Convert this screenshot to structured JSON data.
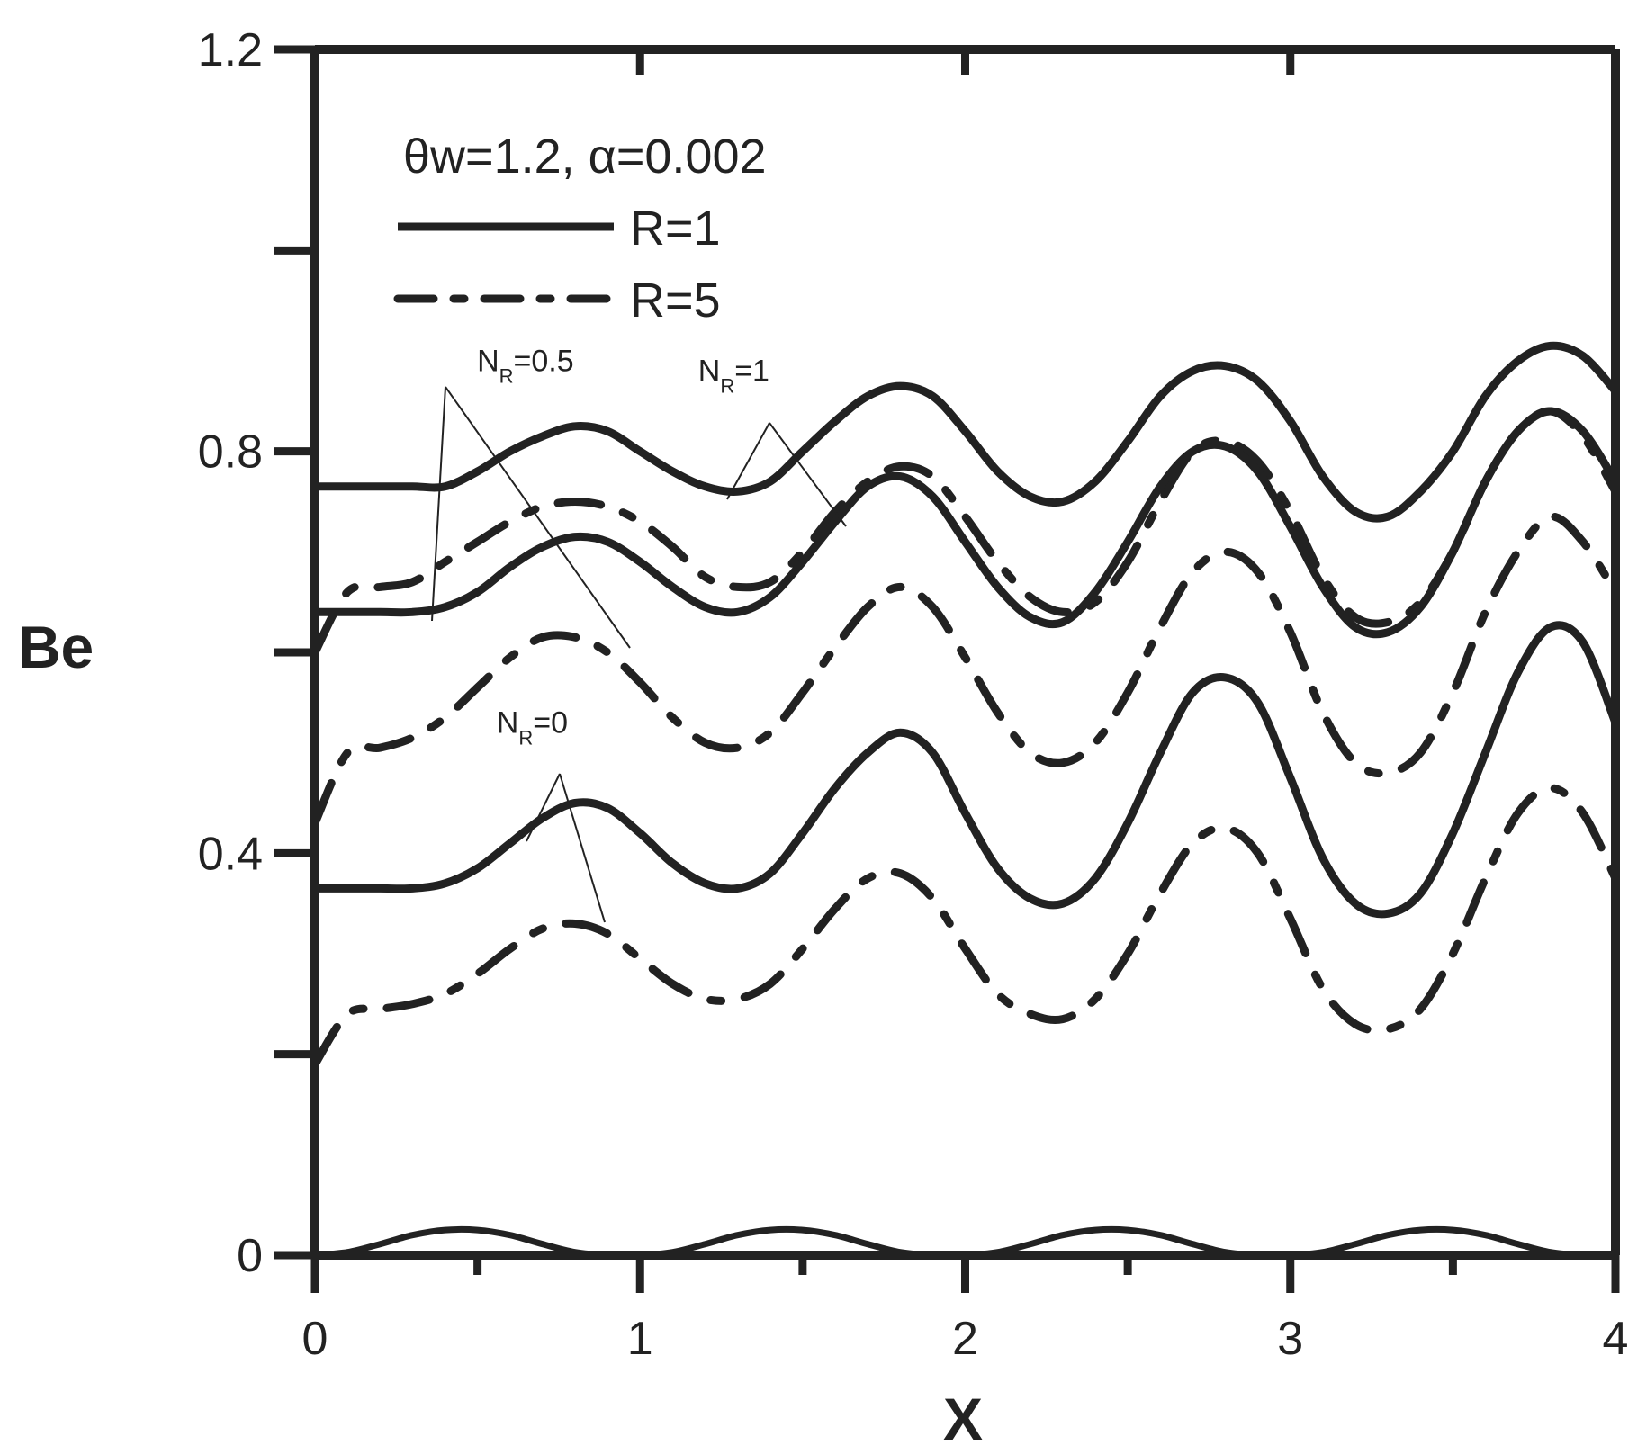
{
  "chart_data": {
    "type": "line",
    "xlabel": "X",
    "ylabel": "Be",
    "xlim": [
      0,
      4
    ],
    "ylim": [
      0,
      1.2
    ],
    "x_ticks": [
      {
        "value": 0,
        "label": "0"
      },
      {
        "value": 1,
        "label": "1"
      },
      {
        "value": 2,
        "label": "2"
      },
      {
        "value": 3,
        "label": "3"
      },
      {
        "value": 4,
        "label": "4"
      }
    ],
    "y_ticks": [
      {
        "value": 0,
        "label": "0"
      },
      {
        "value": 0.4,
        "label": "0.4"
      },
      {
        "value": 0.8,
        "label": "0.8"
      },
      {
        "value": 1.2,
        "label": "1.2"
      }
    ],
    "y_minor_ticks": [
      0.2,
      0.6,
      1.0
    ],
    "x_minor_ticks": [
      0.5,
      1.5,
      2.5,
      3.5
    ],
    "grid": false,
    "legend": {
      "placement": "top-left",
      "header": {
        "main": "θw=1.2, α=0.002"
      },
      "entries": [
        {
          "label": "R=1",
          "style": "solid"
        },
        {
          "label": "R=5",
          "style": "dashdot"
        }
      ]
    },
    "annotations": [
      {
        "base": "N",
        "sub": "R",
        "tail": "=0.5",
        "x": 0.72,
        "y": 0.88
      },
      {
        "base": "N",
        "sub": "R",
        "tail": "=1",
        "x": 1.4,
        "y": 0.87
      },
      {
        "base": "N",
        "sub": "R",
        "tail": "=0",
        "x": 0.78,
        "y": 0.52
      }
    ],
    "series": [
      {
        "group": "NR=1",
        "style": "solid",
        "x": [
          0,
          0.1,
          0.2,
          0.3,
          0.4,
          0.5,
          0.6,
          0.7,
          0.8,
          0.9,
          1.0,
          1.1,
          1.2,
          1.3,
          1.4,
          1.5,
          1.6,
          1.7,
          1.8,
          1.9,
          2.0,
          2.1,
          2.2,
          2.3,
          2.4,
          2.5,
          2.6,
          2.7,
          2.8,
          2.9,
          3.0,
          3.1,
          3.2,
          3.3,
          3.4,
          3.5,
          3.6,
          3.7,
          3.8,
          3.9,
          4.0
        ],
        "y": [
          0.765,
          0.765,
          0.765,
          0.765,
          0.765,
          0.78,
          0.8,
          0.815,
          0.825,
          0.82,
          0.8,
          0.78,
          0.765,
          0.76,
          0.77,
          0.8,
          0.83,
          0.855,
          0.865,
          0.855,
          0.82,
          0.78,
          0.755,
          0.75,
          0.77,
          0.81,
          0.855,
          0.88,
          0.885,
          0.87,
          0.83,
          0.775,
          0.74,
          0.735,
          0.76,
          0.8,
          0.855,
          0.89,
          0.905,
          0.895,
          0.86
        ]
      },
      {
        "group": "NR=1",
        "style": "dashdot",
        "x": [
          0,
          0.1,
          0.2,
          0.3,
          0.4,
          0.5,
          0.6,
          0.7,
          0.8,
          0.9,
          1.0,
          1.1,
          1.2,
          1.3,
          1.4,
          1.5,
          1.6,
          1.7,
          1.8,
          1.9,
          2.0,
          2.1,
          2.2,
          2.3,
          2.4,
          2.5,
          2.6,
          2.7,
          2.8,
          2.9,
          3.0,
          3.1,
          3.2,
          3.3,
          3.4,
          3.5,
          3.6,
          3.7,
          3.8,
          3.9,
          4.0
        ],
        "y": [
          0.6,
          0.66,
          0.665,
          0.67,
          0.69,
          0.71,
          0.73,
          0.745,
          0.75,
          0.745,
          0.73,
          0.705,
          0.675,
          0.665,
          0.67,
          0.7,
          0.74,
          0.77,
          0.785,
          0.775,
          0.735,
          0.69,
          0.655,
          0.64,
          0.65,
          0.69,
          0.75,
          0.8,
          0.81,
          0.79,
          0.74,
          0.675,
          0.635,
          0.63,
          0.65,
          0.7,
          0.77,
          0.82,
          0.84,
          0.815,
          0.76
        ]
      },
      {
        "group": "NR=0.5",
        "style": "solid",
        "x": [
          0,
          0.1,
          0.2,
          0.3,
          0.4,
          0.5,
          0.6,
          0.7,
          0.8,
          0.9,
          1.0,
          1.1,
          1.2,
          1.3,
          1.4,
          1.5,
          1.6,
          1.7,
          1.8,
          1.9,
          2.0,
          2.1,
          2.2,
          2.3,
          2.4,
          2.5,
          2.6,
          2.7,
          2.8,
          2.9,
          3.0,
          3.1,
          3.2,
          3.3,
          3.4,
          3.5,
          3.6,
          3.7,
          3.8,
          3.9,
          4.0
        ],
        "y": [
          0.64,
          0.64,
          0.64,
          0.64,
          0.645,
          0.66,
          0.685,
          0.705,
          0.715,
          0.71,
          0.69,
          0.665,
          0.645,
          0.64,
          0.655,
          0.69,
          0.73,
          0.765,
          0.775,
          0.755,
          0.71,
          0.665,
          0.635,
          0.63,
          0.66,
          0.71,
          0.765,
          0.8,
          0.805,
          0.78,
          0.725,
          0.665,
          0.625,
          0.62,
          0.645,
          0.7,
          0.77,
          0.82,
          0.84,
          0.82,
          0.77
        ]
      },
      {
        "group": "NR=0.5",
        "style": "dashdot",
        "x": [
          0,
          0.1,
          0.2,
          0.3,
          0.4,
          0.5,
          0.6,
          0.7,
          0.8,
          0.9,
          1.0,
          1.1,
          1.2,
          1.3,
          1.4,
          1.5,
          1.6,
          1.7,
          1.8,
          1.9,
          2.0,
          2.1,
          2.2,
          2.3,
          2.4,
          2.5,
          2.6,
          2.7,
          2.8,
          2.9,
          3.0,
          3.1,
          3.2,
          3.3,
          3.4,
          3.5,
          3.6,
          3.7,
          3.8,
          3.9,
          4.0
        ],
        "y": [
          0.43,
          0.5,
          0.505,
          0.515,
          0.535,
          0.565,
          0.595,
          0.615,
          0.615,
          0.6,
          0.57,
          0.535,
          0.51,
          0.505,
          0.52,
          0.56,
          0.605,
          0.645,
          0.665,
          0.645,
          0.595,
          0.54,
          0.5,
          0.49,
          0.51,
          0.56,
          0.625,
          0.68,
          0.7,
          0.68,
          0.62,
          0.54,
          0.49,
          0.48,
          0.5,
          0.56,
          0.64,
          0.7,
          0.735,
          0.71,
          0.66
        ]
      },
      {
        "group": "NR=0",
        "style": "solid",
        "x": [
          0,
          0.1,
          0.2,
          0.3,
          0.4,
          0.5,
          0.6,
          0.7,
          0.8,
          0.9,
          1.0,
          1.1,
          1.2,
          1.3,
          1.4,
          1.5,
          1.6,
          1.7,
          1.8,
          1.9,
          2.0,
          2.1,
          2.2,
          2.3,
          2.4,
          2.5,
          2.6,
          2.7,
          2.8,
          2.9,
          3.0,
          3.1,
          3.2,
          3.3,
          3.4,
          3.5,
          3.6,
          3.7,
          3.8,
          3.9,
          4.0
        ],
        "y": [
          0.365,
          0.365,
          0.365,
          0.365,
          0.37,
          0.385,
          0.41,
          0.435,
          0.45,
          0.445,
          0.42,
          0.39,
          0.37,
          0.365,
          0.38,
          0.42,
          0.465,
          0.5,
          0.52,
          0.5,
          0.44,
          0.385,
          0.355,
          0.35,
          0.375,
          0.43,
          0.5,
          0.56,
          0.575,
          0.55,
          0.475,
          0.395,
          0.35,
          0.34,
          0.36,
          0.42,
          0.5,
          0.58,
          0.625,
          0.61,
          0.53
        ]
      },
      {
        "group": "NR=0",
        "style": "dashdot",
        "x": [
          0,
          0.1,
          0.2,
          0.3,
          0.4,
          0.5,
          0.6,
          0.7,
          0.8,
          0.9,
          1.0,
          1.1,
          1.2,
          1.3,
          1.4,
          1.5,
          1.6,
          1.7,
          1.8,
          1.9,
          2.0,
          2.1,
          2.2,
          2.3,
          2.4,
          2.5,
          2.6,
          2.7,
          2.8,
          2.9,
          3.0,
          3.1,
          3.2,
          3.3,
          3.4,
          3.5,
          3.6,
          3.7,
          3.8,
          3.9,
          4.0
        ],
        "y": [
          0.19,
          0.24,
          0.245,
          0.25,
          0.26,
          0.28,
          0.305,
          0.325,
          0.33,
          0.32,
          0.295,
          0.27,
          0.255,
          0.255,
          0.27,
          0.305,
          0.345,
          0.375,
          0.38,
          0.355,
          0.305,
          0.26,
          0.24,
          0.235,
          0.255,
          0.3,
          0.36,
          0.41,
          0.425,
          0.4,
          0.335,
          0.265,
          0.23,
          0.225,
          0.245,
          0.3,
          0.375,
          0.44,
          0.465,
          0.44,
          0.375
        ]
      },
      {
        "group": "baseline",
        "style": "solid",
        "x": [
          0,
          0.1,
          0.2,
          0.3,
          0.4,
          0.5,
          0.6,
          0.7,
          0.8,
          0.9,
          1.0,
          1.1,
          1.2,
          1.3,
          1.4,
          1.5,
          1.6,
          1.7,
          1.8,
          1.9,
          2.0,
          2.1,
          2.2,
          2.3,
          2.4,
          2.5,
          2.6,
          2.7,
          2.8,
          2.9,
          3.0,
          3.1,
          3.2,
          3.3,
          3.4,
          3.5,
          3.6,
          3.7,
          3.8,
          3.9,
          4.0
        ],
        "y": [
          0,
          0.003,
          0.011,
          0.02,
          0.025,
          0.025,
          0.02,
          0.011,
          0.003,
          0,
          0,
          0.003,
          0.011,
          0.02,
          0.025,
          0.025,
          0.02,
          0.011,
          0.003,
          0,
          0,
          0.003,
          0.011,
          0.02,
          0.025,
          0.025,
          0.02,
          0.011,
          0.003,
          0,
          0,
          0.003,
          0.011,
          0.02,
          0.025,
          0.025,
          0.02,
          0.011,
          0.003,
          0,
          0
        ]
      }
    ]
  }
}
